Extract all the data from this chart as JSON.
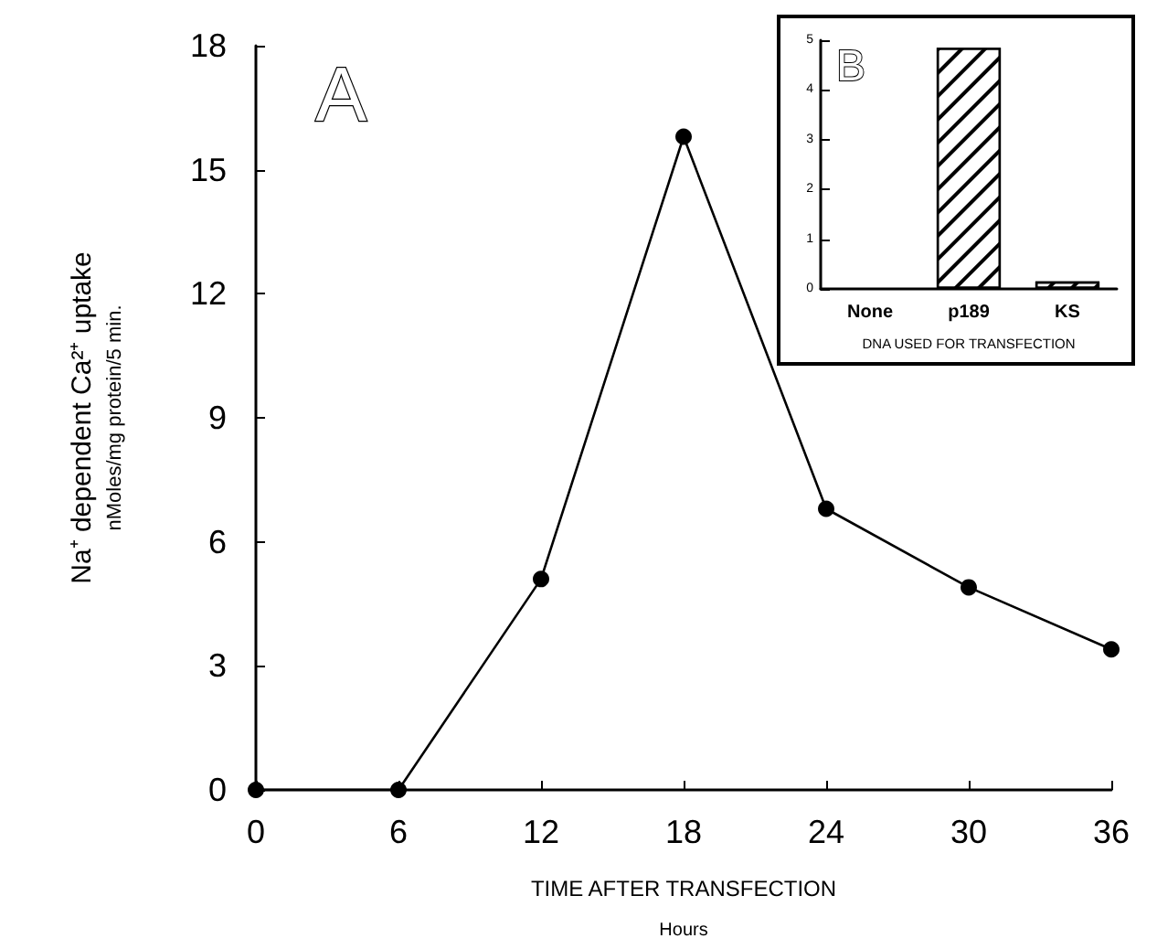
{
  "chart_data": [
    {
      "type": "line",
      "xlabel": "TIME AFTER TRANSFECTION\nHours",
      "ylabel": "Na⁺ dependent Ca²⁺ uptake\nnMoles/mg protein/5 min.",
      "annotations": [
        "A"
      ],
      "x": [
        0,
        6,
        12,
        18,
        24,
        30,
        36
      ],
      "xlim": [
        0,
        36
      ],
      "xticks": [
        0,
        6,
        12,
        18,
        24,
        30,
        36
      ],
      "ylim": [
        0,
        18
      ],
      "yticks": [
        0,
        3,
        6,
        9,
        12,
        15,
        18
      ],
      "series": [
        {
          "color": "#000000",
          "values": [
            0,
            0,
            5.1,
            15.8,
            6.8,
            4.9,
            3.4
          ]
        }
      ],
      "marker": "circle",
      "line_style": "solid"
    },
    {
      "type": "bar",
      "xlabel": "DNA USED FOR TRANSFECTION",
      "annotations": [
        "B"
      ],
      "categories": [
        "None",
        "p189",
        "KS"
      ],
      "ylim": [
        0,
        5
      ],
      "yticks": [
        0,
        1,
        2,
        3,
        4,
        5
      ],
      "series": [
        {
          "color": "#ffffff",
          "values": [
            0,
            4.85,
            0.15
          ]
        }
      ]
    }
  ]
}
